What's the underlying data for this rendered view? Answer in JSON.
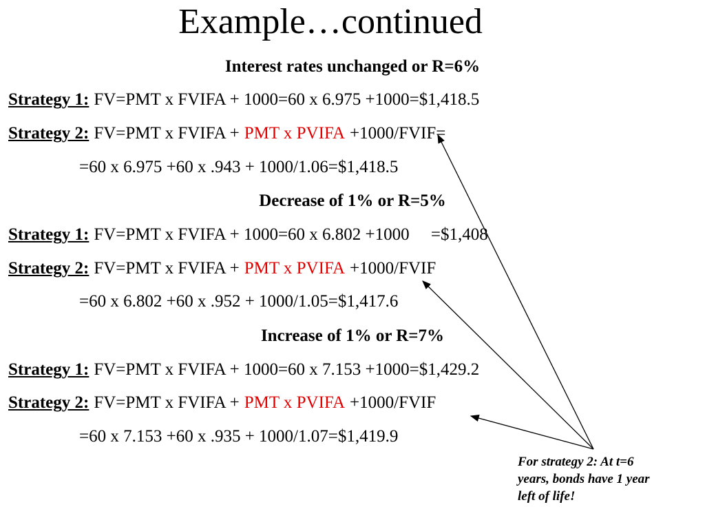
{
  "title": "Example…continued",
  "sections": [
    {
      "heading": "Interest rates unchanged or R=6%",
      "strategy1": {
        "label": "Strategy 1:",
        "text": "FV=PMT x FVIFA + 1000=60 x 6.975 +1000=$1,418.5"
      },
      "strategy2": {
        "label": "Strategy 2:",
        "text": "FV=PMT x FVIFA +",
        "highlight": "PMT x PVIFA",
        "tail": "+1000/FVIF="
      },
      "continuation": "=60 x 6.975 +60 x .943 + 1000/1.06=$1,418.5"
    },
    {
      "heading": "Decrease of 1% or R=5%",
      "strategy1": {
        "label": "Strategy 1:",
        "text": "FV=PMT x FVIFA + 1000=60 x 6.802 +1000     =$1,408"
      },
      "strategy2": {
        "label": "Strategy 2:",
        "text": "FV=PMT x FVIFA +",
        "highlight": "PMT x PVIFA",
        "tail": "+1000/FVIF"
      },
      "continuation": "=60 x 6.802 +60 x .952 + 1000/1.05=$1,417.6"
    },
    {
      "heading": "Increase of 1% or R=7%",
      "strategy1": {
        "label": "Strategy 1:",
        "text": "FV=PMT x FVIFA + 1000=60 x 7.153 +1000=$1,429.2"
      },
      "strategy2": {
        "label": "Strategy 2:",
        "text": "FV=PMT x FVIFA +",
        "highlight": "PMT x PVIFA",
        "tail": "+1000/FVIF"
      },
      "continuation": "=60 x 7.153 +60 x .935 + 1000/1.07=$1,419.9"
    }
  ],
  "note": {
    "lines": [
      "For strategy 2: At t=6",
      "years, bonds have 1 year",
      "left of life!"
    ]
  }
}
